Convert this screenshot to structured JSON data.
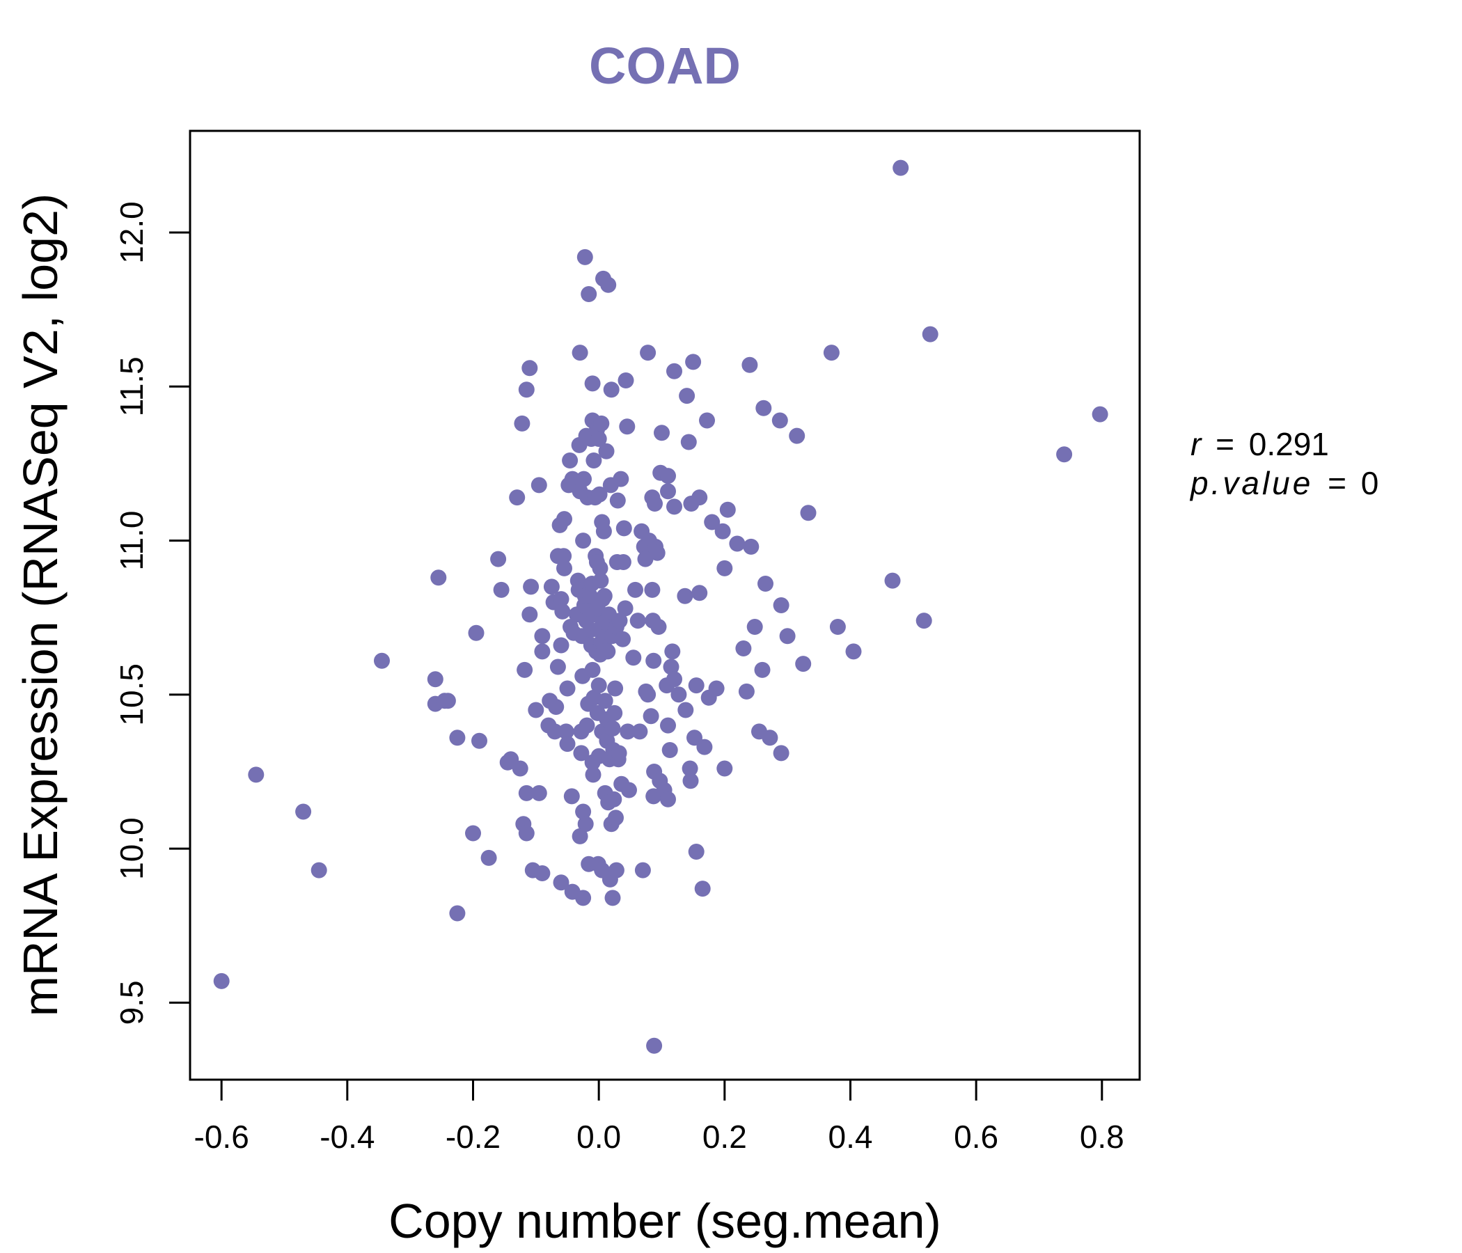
{
  "chart_data": {
    "type": "scatter",
    "title": "COAD",
    "xlabel": "Copy number (seg.mean)",
    "ylabel": "mRNA Expression (RNASeq V2, log2)",
    "xlim": [
      -0.65,
      0.86
    ],
    "ylim": [
      9.25,
      12.33
    ],
    "x_ticks": [
      -0.6,
      -0.4,
      -0.2,
      0.0,
      0.2,
      0.4,
      0.6,
      0.8
    ],
    "x_tick_labels": [
      "-0.6",
      "-0.4",
      "-0.2",
      "0.0",
      "0.2",
      "0.4",
      "0.6",
      "0.8"
    ],
    "y_ticks": [
      9.5,
      10.0,
      10.5,
      11.0,
      11.5,
      12.0
    ],
    "y_tick_labels": [
      "9.5",
      "10.0",
      "10.5",
      "11.0",
      "11.5",
      "12.0"
    ],
    "point_color": "#7570b3",
    "grid": false,
    "stats": {
      "r_label": "r",
      "r_value": "0.291",
      "p_label": "p.value",
      "p_value": "0"
    },
    "points": [
      [
        -0.6,
        9.57
      ],
      [
        -0.545,
        10.24
      ],
      [
        -0.47,
        10.12
      ],
      [
        -0.445,
        9.93
      ],
      [
        -0.345,
        10.61
      ],
      [
        -0.26,
        10.55
      ],
      [
        -0.255,
        10.88
      ],
      [
        -0.26,
        10.47
      ],
      [
        -0.245,
        10.48
      ],
      [
        -0.24,
        10.48
      ],
      [
        -0.225,
        10.36
      ],
      [
        -0.225,
        9.79
      ],
      [
        -0.2,
        10.05
      ],
      [
        -0.195,
        10.7
      ],
      [
        -0.19,
        10.35
      ],
      [
        -0.175,
        9.97
      ],
      [
        -0.16,
        10.94
      ],
      [
        -0.155,
        10.84
      ],
      [
        -0.145,
        10.28
      ],
      [
        -0.14,
        10.29
      ],
      [
        -0.13,
        11.14
      ],
      [
        -0.125,
        10.26
      ],
      [
        -0.122,
        11.38
      ],
      [
        -0.12,
        10.08
      ],
      [
        -0.118,
        10.58
      ],
      [
        -0.115,
        11.49
      ],
      [
        -0.115,
        10.18
      ],
      [
        -0.115,
        10.05
      ],
      [
        -0.11,
        11.56
      ],
      [
        -0.11,
        10.76
      ],
      [
        -0.108,
        10.85
      ],
      [
        -0.105,
        9.93
      ],
      [
        -0.1,
        10.45
      ],
      [
        -0.095,
        11.18
      ],
      [
        -0.095,
        10.18
      ],
      [
        -0.09,
        10.69
      ],
      [
        -0.09,
        10.64
      ],
      [
        -0.09,
        9.92
      ],
      [
        -0.08,
        10.4
      ],
      [
        -0.078,
        10.48
      ],
      [
        -0.075,
        10.85
      ],
      [
        -0.072,
        10.8
      ],
      [
        -0.07,
        10.38
      ],
      [
        -0.068,
        10.46
      ],
      [
        -0.065,
        10.95
      ],
      [
        -0.065,
        10.59
      ],
      [
        -0.062,
        11.05
      ],
      [
        -0.06,
        10.81
      ],
      [
        -0.06,
        10.66
      ],
      [
        -0.06,
        9.89
      ],
      [
        -0.058,
        10.77
      ],
      [
        -0.056,
        10.95
      ],
      [
        -0.055,
        11.07
      ],
      [
        -0.055,
        10.91
      ],
      [
        -0.052,
        10.38
      ],
      [
        -0.05,
        10.34
      ],
      [
        -0.05,
        10.52
      ],
      [
        -0.048,
        11.18
      ],
      [
        -0.046,
        11.26
      ],
      [
        -0.045,
        10.72
      ],
      [
        -0.043,
        10.17
      ],
      [
        -0.042,
        11.2
      ],
      [
        -0.042,
        9.86
      ],
      [
        -0.04,
        10.7
      ],
      [
        -0.038,
        11.18
      ],
      [
        -0.035,
        10.76
      ],
      [
        -0.033,
        10.87
      ],
      [
        -0.032,
        10.84
      ],
      [
        -0.031,
        11.31
      ],
      [
        -0.03,
        11.61
      ],
      [
        -0.03,
        11.16
      ],
      [
        -0.03,
        10.04
      ],
      [
        -0.028,
        10.38
      ],
      [
        -0.028,
        10.31
      ],
      [
        -0.027,
        10.69
      ],
      [
        -0.026,
        10.56
      ],
      [
        -0.025,
        11.0
      ],
      [
        -0.025,
        10.12
      ],
      [
        -0.025,
        9.84
      ],
      [
        -0.024,
        11.2
      ],
      [
        -0.023,
        10.79
      ],
      [
        -0.022,
        11.92
      ],
      [
        -0.022,
        10.82
      ],
      [
        -0.021,
        10.08
      ],
      [
        -0.02,
        11.34
      ],
      [
        -0.02,
        10.74
      ],
      [
        -0.019,
        10.4
      ],
      [
        -0.018,
        11.14
      ],
      [
        -0.017,
        10.47
      ],
      [
        -0.016,
        9.95
      ],
      [
        -0.016,
        11.8
      ],
      [
        -0.014,
        10.82
      ],
      [
        -0.013,
        10.71
      ],
      [
        -0.012,
        11.33
      ],
      [
        -0.012,
        10.66
      ],
      [
        -0.011,
        10.86
      ],
      [
        -0.01,
        11.51
      ],
      [
        -0.01,
        11.39
      ],
      [
        -0.01,
        10.58
      ],
      [
        -0.01,
        10.28
      ],
      [
        -0.009,
        10.24
      ],
      [
        -0.008,
        11.26
      ],
      [
        -0.008,
        10.49
      ],
      [
        -0.007,
        10.76
      ],
      [
        -0.006,
        11.14
      ],
      [
        -0.005,
        10.95
      ],
      [
        -0.004,
        10.64
      ],
      [
        -0.003,
        11.36
      ],
      [
        -0.003,
        10.93
      ],
      [
        -0.002,
        10.78
      ],
      [
        -0.002,
        10.44
      ],
      [
        -0.001,
        9.95
      ],
      [
        0.0,
        10.71
      ],
      [
        0.0,
        11.33
      ],
      [
        0.0,
        10.53
      ],
      [
        0.0,
        10.3
      ],
      [
        0.001,
        11.15
      ],
      [
        0.002,
        10.91
      ],
      [
        0.002,
        10.63
      ],
      [
        0.003,
        10.87
      ],
      [
        0.004,
        10.67
      ],
      [
        0.004,
        11.38
      ],
      [
        0.005,
        11.06
      ],
      [
        0.005,
        10.38
      ],
      [
        0.005,
        9.93
      ],
      [
        0.006,
        10.81
      ],
      [
        0.006,
        10.73
      ],
      [
        0.007,
        11.85
      ],
      [
        0.008,
        10.66
      ],
      [
        0.008,
        11.03
      ],
      [
        0.009,
        10.82
      ],
      [
        0.01,
        10.48
      ],
      [
        0.01,
        10.18
      ],
      [
        0.011,
        10.69
      ],
      [
        0.012,
        11.29
      ],
      [
        0.013,
        10.42
      ],
      [
        0.013,
        10.35
      ],
      [
        0.014,
        10.64
      ],
      [
        0.015,
        11.83
      ],
      [
        0.015,
        10.15
      ],
      [
        0.016,
        10.76
      ],
      [
        0.017,
        10.29
      ],
      [
        0.018,
        9.9
      ],
      [
        0.018,
        10.72
      ],
      [
        0.019,
        11.18
      ],
      [
        0.02,
        11.49
      ],
      [
        0.02,
        10.08
      ],
      [
        0.021,
        10.69
      ],
      [
        0.022,
        10.39
      ],
      [
        0.022,
        9.84
      ],
      [
        0.023,
        10.32
      ],
      [
        0.024,
        10.16
      ],
      [
        0.025,
        10.44
      ],
      [
        0.026,
        10.52
      ],
      [
        0.027,
        10.1
      ],
      [
        0.028,
        9.93
      ],
      [
        0.028,
        10.72
      ],
      [
        0.029,
        10.93
      ],
      [
        0.03,
        11.13
      ],
      [
        0.031,
        10.29
      ],
      [
        0.032,
        10.31
      ],
      [
        0.033,
        10.74
      ],
      [
        0.035,
        11.2
      ],
      [
        0.036,
        10.21
      ],
      [
        0.038,
        10.68
      ],
      [
        0.039,
        10.93
      ],
      [
        0.04,
        11.04
      ],
      [
        0.042,
        10.78
      ],
      [
        0.043,
        11.52
      ],
      [
        0.045,
        11.37
      ],
      [
        0.046,
        10.38
      ],
      [
        0.048,
        10.19
      ],
      [
        0.055,
        10.62
      ],
      [
        0.058,
        10.84
      ],
      [
        0.062,
        10.74
      ],
      [
        0.065,
        10.38
      ],
      [
        0.068,
        11.03
      ],
      [
        0.07,
        9.93
      ],
      [
        0.072,
        10.98
      ],
      [
        0.074,
        10.94
      ],
      [
        0.075,
        10.51
      ],
      [
        0.078,
        10.5
      ],
      [
        0.078,
        11.61
      ],
      [
        0.08,
        11.0
      ],
      [
        0.083,
        10.43
      ],
      [
        0.085,
        11.14
      ],
      [
        0.085,
        10.84
      ],
      [
        0.086,
        10.74
      ],
      [
        0.087,
        10.17
      ],
      [
        0.087,
        10.61
      ],
      [
        0.088,
        9.36
      ],
      [
        0.088,
        10.25
      ],
      [
        0.089,
        11.12
      ],
      [
        0.09,
        10.98
      ],
      [
        0.093,
        10.96
      ],
      [
        0.095,
        10.72
      ],
      [
        0.097,
        10.22
      ],
      [
        0.098,
        11.22
      ],
      [
        0.1,
        11.35
      ],
      [
        0.104,
        10.19
      ],
      [
        0.108,
        10.53
      ],
      [
        0.11,
        10.16
      ],
      [
        0.11,
        10.4
      ],
      [
        0.11,
        11.16
      ],
      [
        0.11,
        11.21
      ],
      [
        0.113,
        10.32
      ],
      [
        0.115,
        10.59
      ],
      [
        0.117,
        10.64
      ],
      [
        0.12,
        11.11
      ],
      [
        0.12,
        10.55
      ],
      [
        0.12,
        11.55
      ],
      [
        0.127,
        10.5
      ],
      [
        0.137,
        10.82
      ],
      [
        0.138,
        10.45
      ],
      [
        0.14,
        11.47
      ],
      [
        0.143,
        11.32
      ],
      [
        0.145,
        10.26
      ],
      [
        0.146,
        10.22
      ],
      [
        0.147,
        11.12
      ],
      [
        0.15,
        11.58
      ],
      [
        0.152,
        10.36
      ],
      [
        0.155,
        10.53
      ],
      [
        0.155,
        9.99
      ],
      [
        0.16,
        11.14
      ],
      [
        0.16,
        10.83
      ],
      [
        0.165,
        9.87
      ],
      [
        0.168,
        10.33
      ],
      [
        0.172,
        11.39
      ],
      [
        0.175,
        10.49
      ],
      [
        0.18,
        11.06
      ],
      [
        0.187,
        10.52
      ],
      [
        0.197,
        11.03
      ],
      [
        0.2,
        10.26
      ],
      [
        0.2,
        10.91
      ],
      [
        0.205,
        11.1
      ],
      [
        0.22,
        10.99
      ],
      [
        0.23,
        10.65
      ],
      [
        0.235,
        10.51
      ],
      [
        0.24,
        11.57
      ],
      [
        0.242,
        10.98
      ],
      [
        0.248,
        10.72
      ],
      [
        0.255,
        10.38
      ],
      [
        0.26,
        10.58
      ],
      [
        0.262,
        11.43
      ],
      [
        0.265,
        10.86
      ],
      [
        0.272,
        10.36
      ],
      [
        0.288,
        11.39
      ],
      [
        0.29,
        10.79
      ],
      [
        0.29,
        10.31
      ],
      [
        0.3,
        10.69
      ],
      [
        0.315,
        11.34
      ],
      [
        0.325,
        10.6
      ],
      [
        0.333,
        11.09
      ],
      [
        0.37,
        11.61
      ],
      [
        0.38,
        10.72
      ],
      [
        0.405,
        10.64
      ],
      [
        0.467,
        10.87
      ],
      [
        0.48,
        12.21
      ],
      [
        0.517,
        10.74
      ],
      [
        0.527,
        11.67
      ],
      [
        0.74,
        11.28
      ],
      [
        0.797,
        11.41
      ]
    ]
  }
}
